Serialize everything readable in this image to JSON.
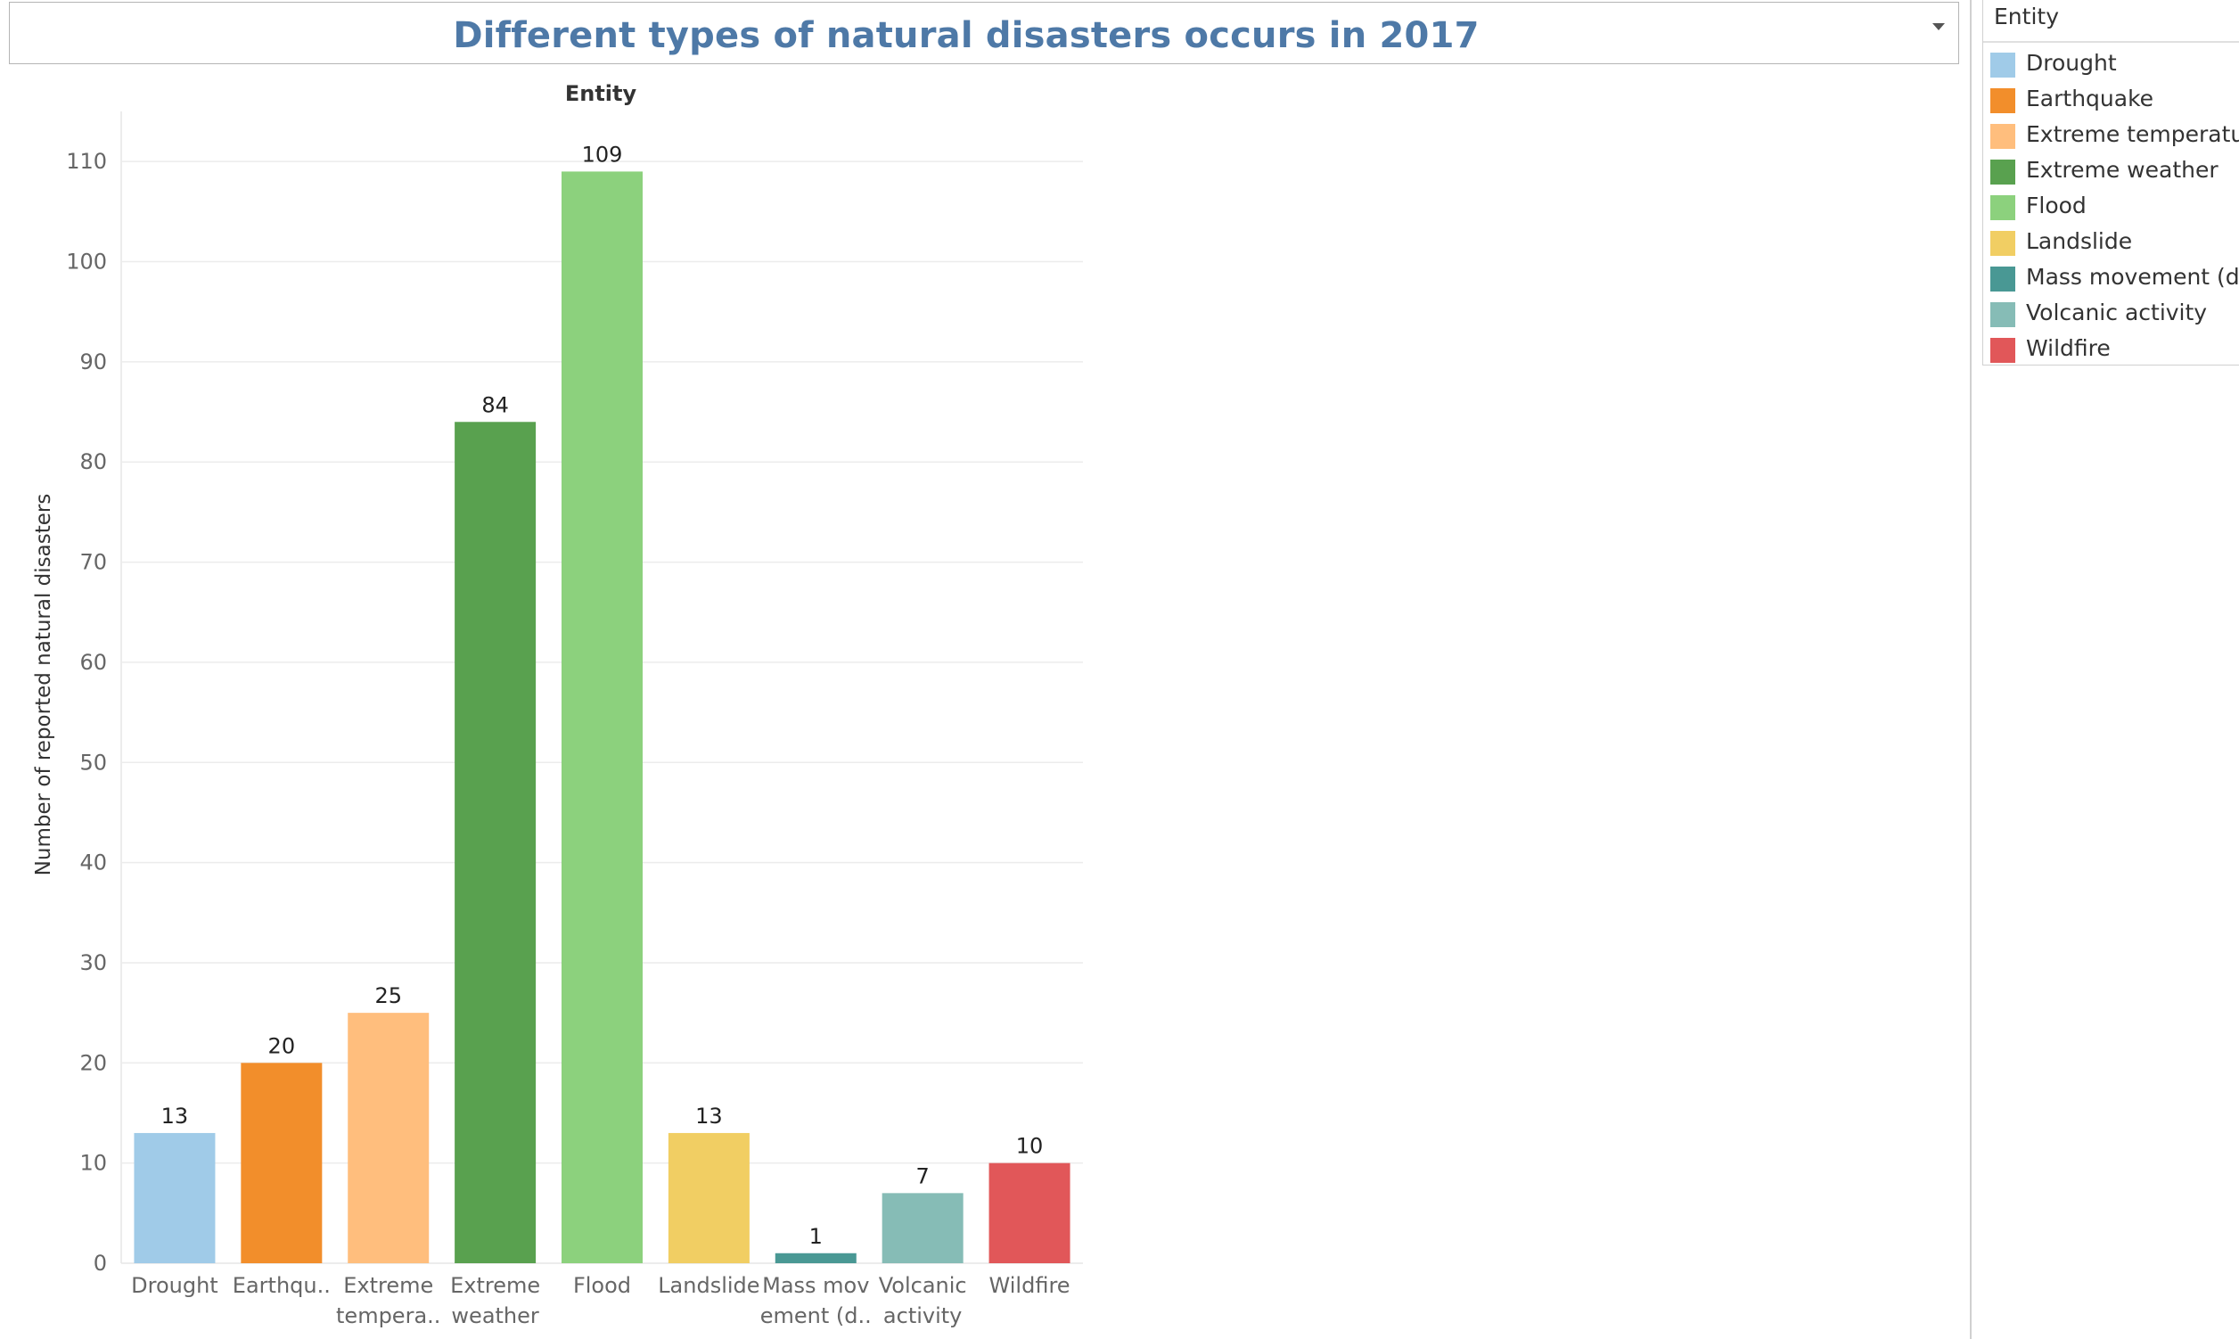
{
  "title": "Different types of natural disasters occurs in 2017",
  "legend": {
    "title": "Entity",
    "items": [
      {
        "label": "Drought",
        "color": "#a0cbe8"
      },
      {
        "label": "Earthquake",
        "color": "#f28e2b"
      },
      {
        "label": "Extreme temperature",
        "color": "#ffbe7d"
      },
      {
        "label": "Extreme weather",
        "color": "#59a14f"
      },
      {
        "label": "Flood",
        "color": "#8cd17d"
      },
      {
        "label": "Landslide",
        "color": "#f1ce63"
      },
      {
        "label": "Mass movement (dry)",
        "color": "#499894"
      },
      {
        "label": "Volcanic activity",
        "color": "#86bcb6"
      },
      {
        "label": "Wildfire",
        "color": "#e15759"
      }
    ]
  },
  "chart_data": {
    "type": "bar",
    "title": "Different types of natural disasters occurs in 2017",
    "column_header": "Entity",
    "xlabel": "",
    "ylabel": "Number of reported natural disasters",
    "ylim": [
      0,
      115
    ],
    "y_ticks": [
      0,
      10,
      20,
      30,
      40,
      50,
      60,
      70,
      80,
      90,
      100,
      110
    ],
    "grid": true,
    "legend_position": "right",
    "categories": [
      "Drought",
      "Earthquake",
      "Extreme temperature",
      "Extreme weather",
      "Flood",
      "Landslide",
      "Mass movement (dry)",
      "Volcanic activity",
      "Wildfire"
    ],
    "tick_labels": [
      [
        "Drought"
      ],
      [
        "Earthqu.."
      ],
      [
        "Extreme",
        "tempera.."
      ],
      [
        "Extreme",
        "weather"
      ],
      [
        "Flood"
      ],
      [
        "Landslide"
      ],
      [
        "Mass mov",
        "ement (d.."
      ],
      [
        "Volcanic",
        "activity"
      ],
      [
        "Wildfire"
      ]
    ],
    "values": [
      13,
      20,
      25,
      84,
      109,
      13,
      1,
      7,
      10
    ],
    "colors": [
      "#a0cbe8",
      "#f28e2b",
      "#ffbe7d",
      "#59a14f",
      "#8cd17d",
      "#f1ce63",
      "#499894",
      "#86bcb6",
      "#e15759"
    ]
  }
}
